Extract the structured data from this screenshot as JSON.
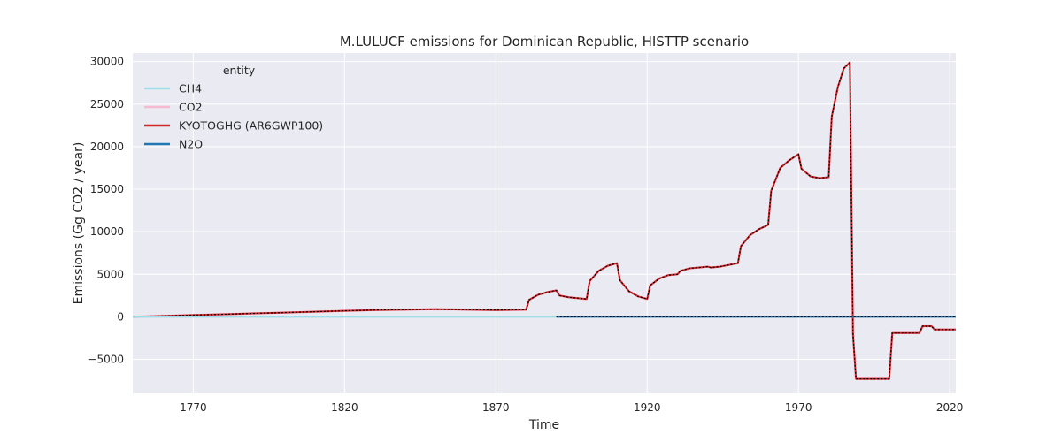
{
  "chart_data": {
    "type": "line",
    "title": "M.LULUCF emissions for Dominican Republic, HISTTP scenario",
    "xlabel": "Time",
    "ylabel": "Emissions (Gg CO2 / year)",
    "xlim": [
      1750,
      2022
    ],
    "ylim": [
      -9000,
      31000
    ],
    "x_ticks": [
      1770,
      1820,
      1870,
      1920,
      1970,
      2020
    ],
    "y_ticks": [
      -5000,
      0,
      5000,
      10000,
      15000,
      20000,
      25000,
      30000
    ],
    "grid": true,
    "legend": {
      "title": "entity",
      "position": "top-left"
    },
    "colors": {
      "plot_background": "#eaeaf2",
      "grid": "#ffffff",
      "CH4": "#9fdde8",
      "CO2": "#f6b9cf",
      "KYOTOGHG": "#d62728",
      "N2O": "#1f77b4",
      "dotted_overlay": "#000000"
    },
    "series": [
      {
        "name": "CH4",
        "x": [
          1750,
          1890
        ],
        "y": [
          0,
          0
        ]
      },
      {
        "name": "CO2",
        "x": [
          1750,
          1760,
          1770,
          1780,
          1790,
          1800,
          1810,
          1820,
          1830,
          1840,
          1850,
          1860,
          1870,
          1880,
          1881,
          1884,
          1887,
          1890,
          1891,
          1894,
          1897,
          1900,
          1901,
          1904,
          1907,
          1910,
          1911,
          1914,
          1917,
          1920,
          1921,
          1924,
          1927,
          1930,
          1931,
          1934,
          1937,
          1940,
          1941,
          1944,
          1947,
          1950,
          1951,
          1954,
          1957,
          1960,
          1961,
          1964,
          1967,
          1970,
          1971,
          1974,
          1977,
          1980,
          1981,
          1983,
          1985,
          1987,
          1988,
          1989,
          1991,
          1994,
          1997,
          2000,
          2001,
          2004,
          2007,
          2010,
          2011,
          2014,
          2015,
          2022
        ],
        "y": [
          0,
          100,
          200,
          300,
          400,
          500,
          600,
          700,
          800,
          850,
          900,
          850,
          800,
          850,
          2000,
          2600,
          2900,
          3100,
          2500,
          2300,
          2200,
          2100,
          4200,
          5400,
          6000,
          6300,
          4300,
          3000,
          2400,
          2100,
          3700,
          4500,
          4900,
          5000,
          5400,
          5700,
          5800,
          5900,
          5800,
          5900,
          6100,
          6300,
          8300,
          9600,
          10300,
          10800,
          14800,
          17500,
          18400,
          19100,
          17400,
          16500,
          16300,
          16400,
          23500,
          27000,
          29200,
          29900,
          -2000,
          -7300,
          -7300,
          -7300,
          -7300,
          -7300,
          -1900,
          -1900,
          -1900,
          -1900,
          -1100,
          -1100,
          -1500,
          -1500
        ]
      },
      {
        "name": "KYOTOGHG (AR6GWP100)",
        "x": [
          1750,
          1760,
          1770,
          1780,
          1790,
          1800,
          1810,
          1820,
          1830,
          1840,
          1850,
          1860,
          1870,
          1880,
          1881,
          1884,
          1887,
          1890,
          1891,
          1894,
          1897,
          1900,
          1901,
          1904,
          1907,
          1910,
          1911,
          1914,
          1917,
          1920,
          1921,
          1924,
          1927,
          1930,
          1931,
          1934,
          1937,
          1940,
          1941,
          1944,
          1947,
          1950,
          1951,
          1954,
          1957,
          1960,
          1961,
          1964,
          1967,
          1970,
          1971,
          1974,
          1977,
          1980,
          1981,
          1983,
          1985,
          1987,
          1988,
          1989,
          1991,
          1994,
          1997,
          2000,
          2001,
          2004,
          2007,
          2010,
          2011,
          2014,
          2015,
          2022
        ],
        "y": [
          0,
          100,
          200,
          300,
          400,
          500,
          600,
          700,
          800,
          850,
          900,
          850,
          800,
          850,
          2000,
          2600,
          2900,
          3100,
          2500,
          2300,
          2200,
          2100,
          4200,
          5400,
          6000,
          6300,
          4300,
          3000,
          2400,
          2100,
          3700,
          4500,
          4900,
          5000,
          5400,
          5700,
          5800,
          5900,
          5800,
          5900,
          6100,
          6300,
          8300,
          9600,
          10300,
          10800,
          14800,
          17500,
          18400,
          19100,
          17400,
          16500,
          16300,
          16400,
          23500,
          27000,
          29200,
          29900,
          -2000,
          -7300,
          -7300,
          -7300,
          -7300,
          -7300,
          -1900,
          -1900,
          -1900,
          -1900,
          -1100,
          -1100,
          -1500,
          -1500
        ]
      },
      {
        "name": "N2O",
        "x": [
          1890,
          2022
        ],
        "y": [
          0,
          0
        ]
      }
    ]
  }
}
